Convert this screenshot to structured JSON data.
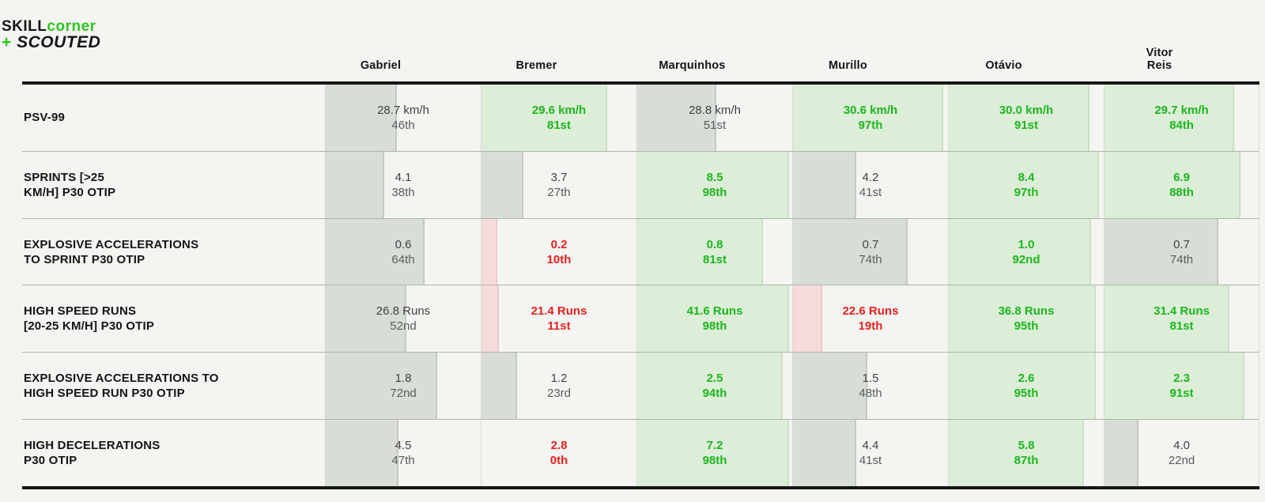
{
  "logo": {
    "skill": "SKILL",
    "corner": "corner",
    "plus": "+",
    "scouted": "SCOUTED"
  },
  "colors": {
    "brand_green": "#2fc521",
    "good_text": "#1db71d",
    "bad_text": "#e52222",
    "neutral_text": "#3f443f",
    "good_bar_bg": "#dcedd8",
    "bad_bar_bg": "#f6dbdb",
    "neutral_bar_bg": "#d9ddd8",
    "page_bg": "#f4f4f1",
    "rule_black": "#171717",
    "row_separator": "#adb5ad"
  },
  "chart_data": {
    "type": "table",
    "columns": [
      "Gabriel",
      "Bremer",
      "Marquinhos",
      "Murillo",
      "Otávio",
      "Vitor\nReis"
    ],
    "rows": [
      {
        "label": "PSV-99",
        "cells": [
          {
            "value": "28.7 km/h",
            "percentile": "46th",
            "pct": 46,
            "status": "neutral"
          },
          {
            "value": "29.6 km/h",
            "percentile": "81st",
            "pct": 81,
            "status": "good"
          },
          {
            "value": "28.8 km/h",
            "percentile": "51st",
            "pct": 51,
            "status": "neutral"
          },
          {
            "value": "30.6 km/h",
            "percentile": "97th",
            "pct": 97,
            "status": "good"
          },
          {
            "value": "30.0 km/h",
            "percentile": "91st",
            "pct": 91,
            "status": "good"
          },
          {
            "value": "29.7 km/h",
            "percentile": "84th",
            "pct": 84,
            "status": "good"
          }
        ]
      },
      {
        "label": "SPRINTS [>25\nKM/H] P30 OTIP",
        "cells": [
          {
            "value": "4.1",
            "percentile": "38th",
            "pct": 38,
            "status": "neutral"
          },
          {
            "value": "3.7",
            "percentile": "27th",
            "pct": 27,
            "status": "neutral"
          },
          {
            "value": "8.5",
            "percentile": "98th",
            "pct": 98,
            "status": "good"
          },
          {
            "value": "4.2",
            "percentile": "41st",
            "pct": 41,
            "status": "neutral"
          },
          {
            "value": "8.4",
            "percentile": "97th",
            "pct": 97,
            "status": "good"
          },
          {
            "value": "6.9",
            "percentile": "88th",
            "pct": 88,
            "status": "good"
          }
        ]
      },
      {
        "label": "EXPLOSIVE ACCELERATIONS\nTO SPRINT P30 OTIP",
        "cells": [
          {
            "value": "0.6",
            "percentile": "64th",
            "pct": 64,
            "status": "neutral"
          },
          {
            "value": "0.2",
            "percentile": "10th",
            "pct": 10,
            "status": "bad"
          },
          {
            "value": "0.8",
            "percentile": "81st",
            "pct": 81,
            "status": "good"
          },
          {
            "value": "0.7",
            "percentile": "74th",
            "pct": 74,
            "status": "neutral"
          },
          {
            "value": "1.0",
            "percentile": "92nd",
            "pct": 92,
            "status": "good"
          },
          {
            "value": "0.7",
            "percentile": "74th",
            "pct": 74,
            "status": "neutral"
          }
        ]
      },
      {
        "label": "HIGH SPEED RUNS\n[20-25 KM/H] P30 OTIP",
        "cells": [
          {
            "value": "26.8 Runs",
            "percentile": "52nd",
            "pct": 52,
            "status": "neutral"
          },
          {
            "value": "21.4 Runs",
            "percentile": "11st",
            "pct": 11,
            "status": "bad"
          },
          {
            "value": "41.6 Runs",
            "percentile": "98th",
            "pct": 98,
            "status": "good"
          },
          {
            "value": "22.6 Runs",
            "percentile": "19th",
            "pct": 19,
            "status": "bad"
          },
          {
            "value": "36.8 Runs",
            "percentile": "95th",
            "pct": 95,
            "status": "good"
          },
          {
            "value": "31.4 Runs",
            "percentile": "81st",
            "pct": 81,
            "status": "good"
          }
        ]
      },
      {
        "label": "EXPLOSIVE ACCELERATIONS TO\nHIGH SPEED RUN P30 OTIP",
        "cells": [
          {
            "value": "1.8",
            "percentile": "72nd",
            "pct": 72,
            "status": "neutral"
          },
          {
            "value": "1.2",
            "percentile": "23rd",
            "pct": 23,
            "status": "neutral"
          },
          {
            "value": "2.5",
            "percentile": "94th",
            "pct": 94,
            "status": "good"
          },
          {
            "value": "1.5",
            "percentile": "48th",
            "pct": 48,
            "status": "neutral"
          },
          {
            "value": "2.6",
            "percentile": "95th",
            "pct": 95,
            "status": "good"
          },
          {
            "value": "2.3",
            "percentile": "91st",
            "pct": 91,
            "status": "good"
          }
        ]
      },
      {
        "label": "HIGH DECELERATIONS\nP30 OTIP",
        "cells": [
          {
            "value": "4.5",
            "percentile": "47th",
            "pct": 47,
            "status": "neutral"
          },
          {
            "value": "2.8",
            "percentile": "0th",
            "pct": 0,
            "status": "bad"
          },
          {
            "value": "7.2",
            "percentile": "98th",
            "pct": 98,
            "status": "good"
          },
          {
            "value": "4.4",
            "percentile": "41st",
            "pct": 41,
            "status": "neutral"
          },
          {
            "value": "5.8",
            "percentile": "87th",
            "pct": 87,
            "status": "good"
          },
          {
            "value": "4.0",
            "percentile": "22nd",
            "pct": 22,
            "status": "neutral"
          }
        ]
      }
    ]
  }
}
